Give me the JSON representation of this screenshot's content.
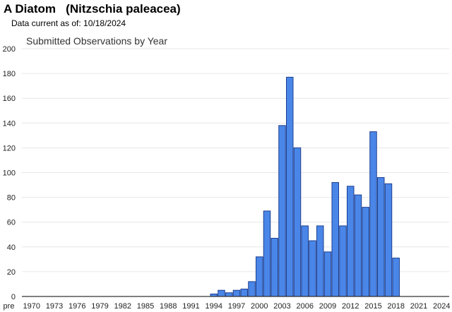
{
  "header": {
    "title": "A Diatom   (Nitzschia paleacea)",
    "data_current_label": "Data current as of: 10/18/2024"
  },
  "colors": {
    "bar_fill": "#4a86e8",
    "bar_stroke": "#1c3f8f",
    "grid": "#e6e6e6",
    "axis": "#333333"
  },
  "chart_data": {
    "type": "bar",
    "title": "Submitted Observations by Year",
    "xlabel": "",
    "ylabel": "",
    "ylim": [
      0,
      200
    ],
    "yticks": [
      0,
      20,
      40,
      60,
      80,
      100,
      120,
      140,
      160,
      180,
      200
    ],
    "grid": true,
    "x_tick_labels": [
      "pre",
      "1970",
      "1973",
      "1976",
      "1979",
      "1982",
      "1985",
      "1988",
      "1991",
      "1994",
      "1997",
      "2000",
      "2003",
      "2006",
      "2009",
      "2012",
      "2015",
      "2018",
      "2021",
      "2024"
    ],
    "categories": [
      "1994",
      "1995",
      "1996",
      "1997",
      "1998",
      "1999",
      "2000",
      "2001",
      "2002",
      "2003",
      "2004",
      "2005",
      "2006",
      "2007",
      "2008",
      "2009",
      "2010",
      "2011",
      "2012",
      "2013",
      "2014",
      "2015",
      "2016",
      "2017",
      "2018"
    ],
    "values": [
      2,
      5,
      3,
      5,
      6,
      12,
      32,
      69,
      47,
      138,
      177,
      120,
      57,
      45,
      57,
      36,
      92,
      57,
      89,
      82,
      72,
      133,
      96,
      91,
      31
    ]
  }
}
